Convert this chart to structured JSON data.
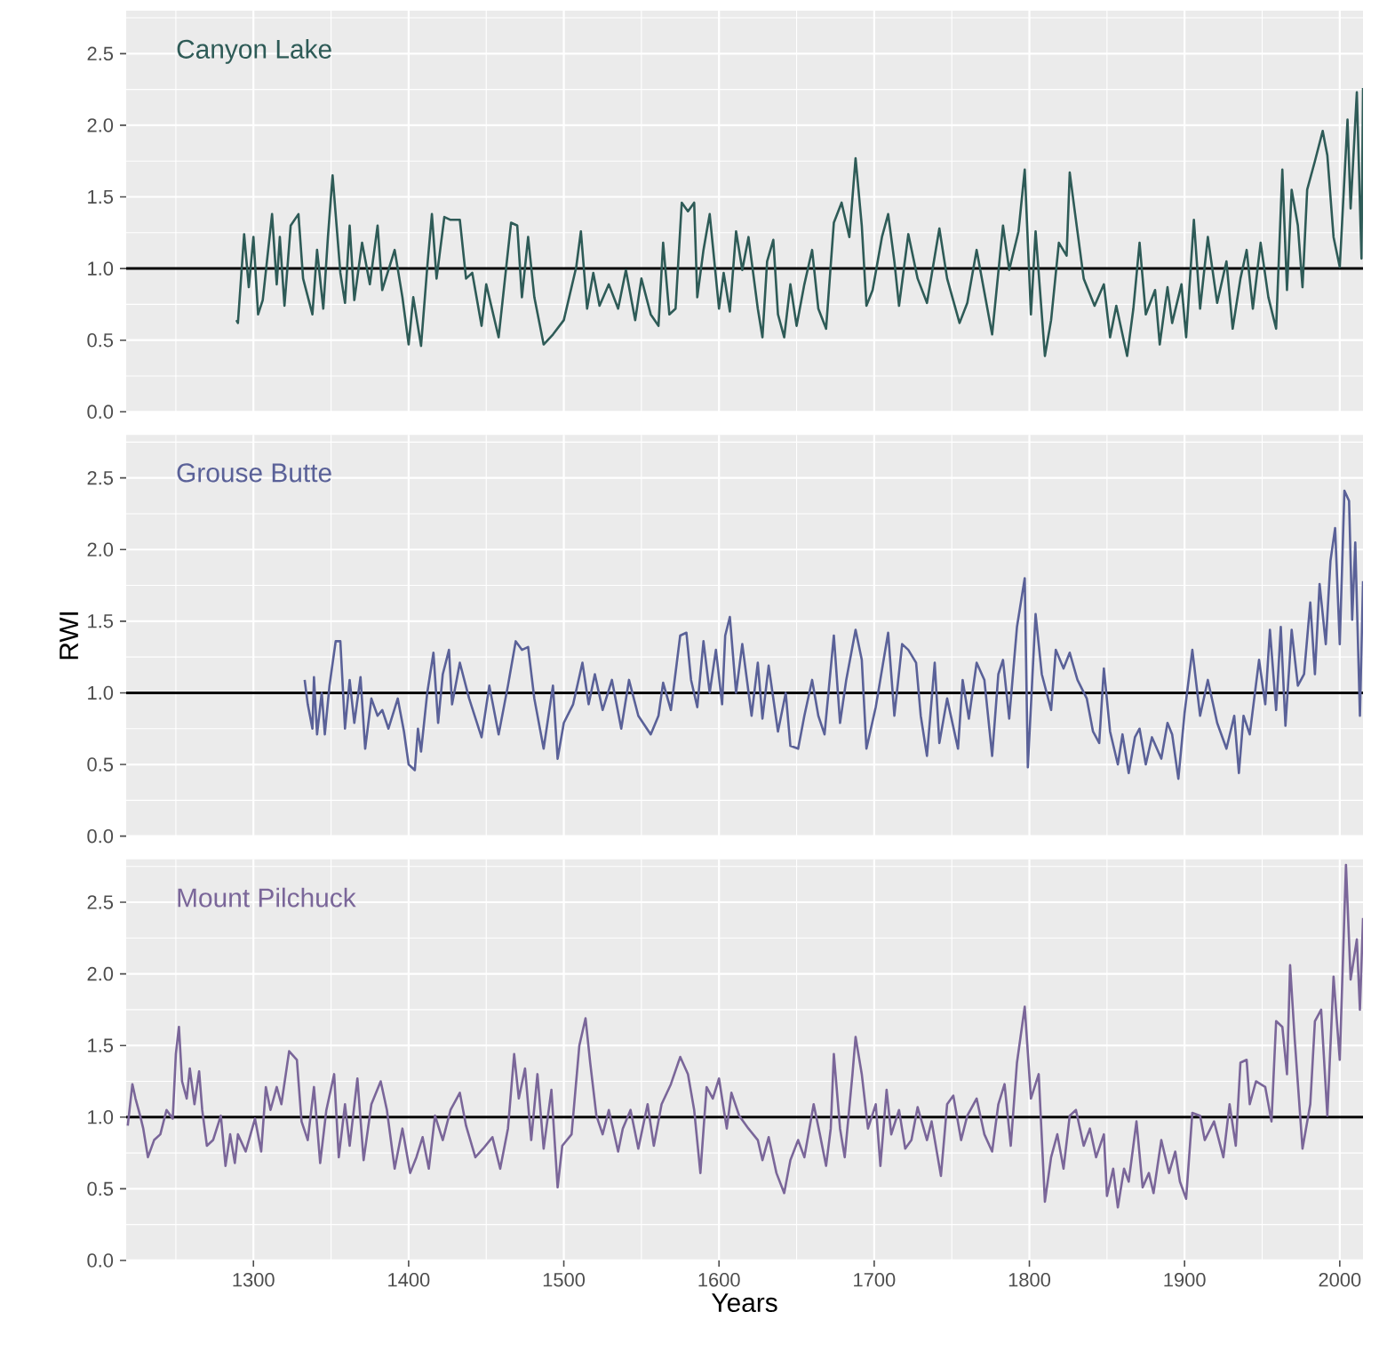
{
  "chart_data": [
    {
      "type": "line",
      "xlim": [
        1218,
        2015
      ],
      "ylim": [
        0,
        2.8
      ],
      "xticks": [
        1300,
        1400,
        1500,
        1600,
        1700,
        1800,
        1900,
        2000
      ],
      "yticks": [
        {
          "value": 0,
          "label": "0.0"
        },
        0.5,
        {
          "value": 1,
          "label": "1.0"
        },
        1.5,
        {
          "value": 2,
          "label": "2.0"
        },
        2.5
      ],
      "grid": true,
      "tick_labels": "y",
      "ref_lines": [
        {
          "axis": "y",
          "value": 1,
          "color": "#000000"
        }
      ],
      "series": [
        {
          "name": "Canyon Lake",
          "color": "#2e5b57",
          "x": [
            1289,
            1290,
            1294,
            1297,
            1300,
            1303,
            1306,
            1312,
            1315,
            1317,
            1320,
            1324,
            1329,
            1332,
            1338,
            1341,
            1345,
            1348,
            1351,
            1356,
            1359,
            1362,
            1365,
            1370,
            1375,
            1380,
            1383,
            1391,
            1396,
            1400,
            1403,
            1408,
            1412,
            1415,
            1418,
            1423,
            1427,
            1433,
            1437,
            1441,
            1447,
            1450,
            1458,
            1466,
            1470,
            1473,
            1477,
            1481,
            1487,
            1493,
            1500,
            1508,
            1511,
            1515,
            1519,
            1523,
            1529,
            1535,
            1540,
            1546,
            1550,
            1556,
            1561,
            1564,
            1568,
            1572,
            1576,
            1580,
            1584,
            1586,
            1590,
            1594,
            1600,
            1603,
            1607,
            1611,
            1615,
            1619,
            1625,
            1628,
            1631,
            1635,
            1638,
            1642,
            1646,
            1650,
            1655,
            1660,
            1664,
            1669,
            1674,
            1679,
            1684,
            1688,
            1692,
            1695,
            1699,
            1705,
            1709,
            1713,
            1716,
            1722,
            1728,
            1734,
            1742,
            1747,
            1755,
            1760,
            1766,
            1776,
            1783,
            1787,
            1793,
            1797,
            1801,
            1804,
            1810,
            1814,
            1819,
            1824,
            1826,
            1829,
            1835,
            1842,
            1848,
            1852,
            1856,
            1863,
            1867,
            1871,
            1875,
            1881,
            1884,
            1889,
            1892,
            1898,
            1901,
            1906,
            1910,
            1915,
            1921,
            1927,
            1931,
            1936,
            1940,
            1944,
            1949,
            1954,
            1959,
            1963,
            1966,
            1969,
            1973,
            1976,
            1979,
            1984,
            1989,
            1992,
            1996,
            2000,
            2005,
            2007,
            2011,
            2014,
            2015
          ],
          "values": [
            0.64,
            0.62,
            1.24,
            0.87,
            1.22,
            0.68,
            0.78,
            1.38,
            0.89,
            1.22,
            0.74,
            1.3,
            1.38,
            0.93,
            0.68,
            1.13,
            0.72,
            1.22,
            1.65,
            0.97,
            0.76,
            1.3,
            0.78,
            1.18,
            0.89,
            1.3,
            0.85,
            1.13,
            0.8,
            0.47,
            0.8,
            0.46,
            1.01,
            1.38,
            0.93,
            1.36,
            1.34,
            1.34,
            0.93,
            0.97,
            0.6,
            0.89,
            0.52,
            1.32,
            1.3,
            0.8,
            1.22,
            0.8,
            0.47,
            0.54,
            0.64,
            1.01,
            1.26,
            0.72,
            0.97,
            0.74,
            0.89,
            0.72,
            0.99,
            0.64,
            0.93,
            0.68,
            0.6,
            1.18,
            0.68,
            0.72,
            1.46,
            1.4,
            1.46,
            0.8,
            1.13,
            1.38,
            0.72,
            0.97,
            0.7,
            1.26,
            0.99,
            1.22,
            0.72,
            0.52,
            1.05,
            1.2,
            0.68,
            0.52,
            0.89,
            0.6,
            0.89,
            1.13,
            0.72,
            0.58,
            1.32,
            1.46,
            1.22,
            1.77,
            1.3,
            0.74,
            0.85,
            1.22,
            1.38,
            1.05,
            0.74,
            1.24,
            0.93,
            0.76,
            1.28,
            0.93,
            0.62,
            0.76,
            1.13,
            0.54,
            1.3,
            0.99,
            1.26,
            1.69,
            0.68,
            1.26,
            0.39,
            0.64,
            1.18,
            1.09,
            1.67,
            1.42,
            0.93,
            0.74,
            0.89,
            0.52,
            0.74,
            0.39,
            0.72,
            1.18,
            0.68,
            0.85,
            0.47,
            0.87,
            0.62,
            0.89,
            0.52,
            1.34,
            0.72,
            1.22,
            0.76,
            1.05,
            0.58,
            0.93,
            1.13,
            0.72,
            1.18,
            0.8,
            0.58,
            1.69,
            0.85,
            1.55,
            1.3,
            0.87,
            1.55,
            1.75,
            1.96,
            1.79,
            1.22,
            1.01,
            2.04,
            1.42,
            2.23,
            1.07,
            2.26
          ]
        }
      ]
    },
    {
      "type": "line",
      "ylabel": "RWI",
      "xlim": [
        1218,
        2015
      ],
      "ylim": [
        0,
        2.8
      ],
      "xticks": [
        1300,
        1400,
        1500,
        1600,
        1700,
        1800,
        1900,
        2000
      ],
      "yticks": [
        {
          "value": 0,
          "label": "0.0"
        },
        0.5,
        {
          "value": 1,
          "label": "1.0"
        },
        1.5,
        {
          "value": 2,
          "label": "2.0"
        },
        2.5
      ],
      "grid": true,
      "tick_labels": "y",
      "ref_lines": [
        {
          "axis": "y",
          "value": 1,
          "color": "#000000"
        }
      ],
      "series": [
        {
          "name": "Grouse Butte",
          "color": "#5a6198",
          "x": [
            1333,
            1335,
            1338,
            1339,
            1341,
            1344,
            1346,
            1349,
            1353,
            1356,
            1359,
            1362,
            1365,
            1369,
            1372,
            1376,
            1380,
            1383,
            1387,
            1393,
            1397,
            1400,
            1404,
            1406,
            1408,
            1412,
            1416,
            1419,
            1422,
            1426,
            1428,
            1433,
            1439,
            1447,
            1452,
            1458,
            1464,
            1469,
            1473,
            1477,
            1481,
            1487,
            1493,
            1496,
            1500,
            1506,
            1512,
            1516,
            1520,
            1525,
            1531,
            1537,
            1542,
            1548,
            1556,
            1561,
            1564,
            1569,
            1575,
            1579,
            1582,
            1586,
            1590,
            1594,
            1598,
            1602,
            1604,
            1607,
            1611,
            1615,
            1621,
            1625,
            1628,
            1632,
            1638,
            1643,
            1646,
            1651,
            1655,
            1660,
            1664,
            1668,
            1674,
            1678,
            1682,
            1688,
            1692,
            1695,
            1701,
            1709,
            1713,
            1718,
            1722,
            1727,
            1730,
            1734,
            1739,
            1742,
            1747,
            1754,
            1757,
            1761,
            1766,
            1771,
            1776,
            1780,
            1783,
            1787,
            1792,
            1797,
            1799,
            1804,
            1808,
            1814,
            1817,
            1822,
            1826,
            1831,
            1837,
            1841,
            1845,
            1848,
            1852,
            1857,
            1860,
            1864,
            1868,
            1871,
            1875,
            1879,
            1885,
            1889,
            1892,
            1896,
            1900,
            1905,
            1910,
            1915,
            1921,
            1927,
            1932,
            1935,
            1938,
            1942,
            1948,
            1952,
            1955,
            1959,
            1962,
            1965,
            1969,
            1973,
            1977,
            1981,
            1984,
            1987,
            1991,
            1994,
            1997,
            2000,
            2003,
            2006,
            2008,
            2010,
            2013,
            2015
          ],
          "values": [
            1.09,
            0.92,
            0.75,
            1.11,
            0.71,
            1.0,
            0.71,
            1.05,
            1.36,
            1.36,
            0.75,
            1.09,
            0.79,
            1.11,
            0.61,
            0.96,
            0.84,
            0.88,
            0.75,
            0.96,
            0.73,
            0.5,
            0.46,
            0.75,
            0.59,
            1.0,
            1.28,
            0.79,
            1.13,
            1.3,
            0.92,
            1.21,
            0.96,
            0.69,
            1.05,
            0.71,
            1.05,
            1.36,
            1.3,
            1.32,
            0.96,
            0.61,
            1.05,
            0.54,
            0.79,
            0.92,
            1.21,
            0.92,
            1.13,
            0.88,
            1.09,
            0.75,
            1.09,
            0.84,
            0.71,
            0.84,
            1.07,
            0.88,
            1.4,
            1.42,
            1.09,
            0.9,
            1.36,
            1.0,
            1.3,
            0.92,
            1.4,
            1.53,
            1.0,
            1.34,
            0.84,
            1.21,
            0.82,
            1.19,
            0.73,
            1.0,
            0.63,
            0.61,
            0.84,
            1.09,
            0.84,
            0.71,
            1.4,
            0.79,
            1.09,
            1.44,
            1.23,
            0.61,
            0.9,
            1.42,
            0.84,
            1.34,
            1.3,
            1.21,
            0.84,
            0.56,
            1.21,
            0.65,
            0.96,
            0.61,
            1.09,
            0.82,
            1.21,
            1.09,
            0.56,
            1.13,
            1.23,
            0.82,
            1.46,
            1.8,
            0.48,
            1.55,
            1.13,
            0.88,
            1.3,
            1.17,
            1.28,
            1.09,
            0.96,
            0.73,
            0.65,
            1.17,
            0.73,
            0.5,
            0.71,
            0.44,
            0.69,
            0.75,
            0.5,
            0.69,
            0.54,
            0.79,
            0.71,
            0.4,
            0.86,
            1.3,
            0.84,
            1.09,
            0.79,
            0.61,
            0.84,
            0.44,
            0.84,
            0.71,
            1.23,
            0.92,
            1.44,
            0.88,
            1.46,
            0.77,
            1.44,
            1.05,
            1.13,
            1.63,
            1.13,
            1.76,
            1.34,
            1.92,
            2.15,
            1.34,
            2.41,
            2.34,
            1.51,
            2.05,
            0.84,
            1.78
          ]
        }
      ]
    },
    {
      "type": "line",
      "xlabel": "Years",
      "xlim": [
        1218,
        2015
      ],
      "ylim": [
        0,
        2.8
      ],
      "xticks": [
        1300,
        1400,
        1500,
        1600,
        1700,
        1800,
        1900,
        2000
      ],
      "yticks": [
        {
          "value": 0,
          "label": "0.0"
        },
        0.5,
        {
          "value": 1,
          "label": "1.0"
        },
        1.5,
        {
          "value": 2,
          "label": "2.0"
        },
        2.5
      ],
      "grid": true,
      "ref_lines": [
        {
          "axis": "y",
          "value": 1,
          "color": "#000000"
        }
      ],
      "series": [
        {
          "name": "Mount Pilchuck",
          "color": "#7a6699",
          "x": [
            1219,
            1222,
            1224,
            1227,
            1229,
            1232,
            1236,
            1240,
            1244,
            1248,
            1250,
            1252,
            1254,
            1257,
            1259,
            1262,
            1265,
            1267,
            1270,
            1274,
            1279,
            1282,
            1285,
            1288,
            1290,
            1295,
            1301,
            1305,
            1308,
            1311,
            1315,
            1318,
            1323,
            1328,
            1331,
            1335,
            1339,
            1343,
            1347,
            1352,
            1355,
            1359,
            1362,
            1367,
            1371,
            1376,
            1382,
            1386,
            1391,
            1396,
            1401,
            1405,
            1409,
            1413,
            1417,
            1422,
            1427,
            1433,
            1437,
            1443,
            1448,
            1454,
            1459,
            1464,
            1468,
            1471,
            1475,
            1479,
            1483,
            1487,
            1492,
            1496,
            1499,
            1505,
            1510,
            1514,
            1517,
            1521,
            1525,
            1529,
            1535,
            1538,
            1543,
            1548,
            1554,
            1558,
            1563,
            1569,
            1575,
            1580,
            1584,
            1588,
            1592,
            1596,
            1600,
            1605,
            1608,
            1613,
            1619,
            1625,
            1628,
            1632,
            1637,
            1642,
            1646,
            1651,
            1655,
            1661,
            1665,
            1669,
            1672,
            1674,
            1678,
            1681,
            1686,
            1688,
            1692,
            1696,
            1701,
            1704,
            1708,
            1711,
            1716,
            1720,
            1724,
            1728,
            1734,
            1737,
            1743,
            1747,
            1751,
            1756,
            1760,
            1766,
            1771,
            1776,
            1780,
            1784,
            1788,
            1792,
            1797,
            1801,
            1806,
            1810,
            1814,
            1818,
            1822,
            1826,
            1830,
            1835,
            1839,
            1843,
            1848,
            1850,
            1854,
            1857,
            1861,
            1864,
            1869,
            1873,
            1877,
            1880,
            1885,
            1890,
            1894,
            1897,
            1901,
            1905,
            1910,
            1913,
            1919,
            1925,
            1929,
            1933,
            1936,
            1940,
            1942,
            1946,
            1952,
            1956,
            1959,
            1963,
            1966,
            1968,
            1971,
            1976,
            1981,
            1984,
            1988,
            1992,
            1996,
            2000,
            2004,
            2007,
            2011,
            2013,
            2015
          ],
          "values": [
            0.94,
            1.23,
            1.13,
            1.01,
            0.92,
            0.72,
            0.84,
            0.88,
            1.05,
            0.99,
            1.44,
            1.63,
            1.25,
            1.13,
            1.34,
            1.09,
            1.32,
            1.05,
            0.8,
            0.84,
            1.01,
            0.66,
            0.88,
            0.68,
            0.88,
            0.76,
            0.99,
            0.76,
            1.21,
            1.05,
            1.21,
            1.09,
            1.46,
            1.4,
            0.97,
            0.84,
            1.21,
            0.68,
            1.05,
            1.3,
            0.72,
            1.09,
            0.8,
            1.27,
            0.7,
            1.09,
            1.25,
            1.05,
            0.64,
            0.92,
            0.61,
            0.72,
            0.86,
            0.64,
            1.01,
            0.84,
            1.05,
            1.17,
            0.94,
            0.72,
            0.78,
            0.86,
            0.64,
            0.92,
            1.44,
            1.13,
            1.34,
            0.84,
            1.3,
            0.78,
            1.19,
            0.51,
            0.8,
            0.88,
            1.5,
            1.69,
            1.38,
            1.01,
            0.88,
            1.05,
            0.76,
            0.92,
            1.05,
            0.78,
            1.09,
            0.8,
            1.09,
            1.23,
            1.42,
            1.3,
            1.05,
            0.61,
            1.21,
            1.13,
            1.27,
            0.92,
            1.17,
            1.01,
            0.92,
            0.84,
            0.7,
            0.86,
            0.61,
            0.47,
            0.7,
            0.84,
            0.72,
            1.09,
            0.88,
            0.66,
            0.92,
            1.44,
            0.92,
            0.72,
            1.3,
            1.56,
            1.3,
            0.92,
            1.09,
            0.66,
            1.19,
            0.88,
            1.05,
            0.78,
            0.84,
            1.07,
            0.84,
            0.97,
            0.59,
            1.09,
            1.15,
            0.84,
            1.01,
            1.13,
            0.88,
            0.76,
            1.09,
            1.23,
            0.8,
            1.38,
            1.77,
            1.13,
            1.3,
            0.41,
            0.72,
            0.88,
            0.64,
            1.01,
            1.05,
            0.8,
            0.92,
            0.72,
            0.88,
            0.45,
            0.64,
            0.37,
            0.64,
            0.55,
            0.97,
            0.51,
            0.61,
            0.47,
            0.84,
            0.61,
            0.76,
            0.55,
            0.43,
            1.03,
            1.01,
            0.84,
            0.97,
            0.72,
            1.09,
            0.8,
            1.38,
            1.4,
            1.09,
            1.25,
            1.21,
            0.97,
            1.67,
            1.63,
            1.3,
            2.06,
            1.54,
            0.78,
            1.09,
            1.67,
            1.75,
            1.01,
            1.98,
            1.4,
            2.76,
            1.96,
            2.24,
            1.75,
            2.39
          ]
        }
      ]
    }
  ]
}
